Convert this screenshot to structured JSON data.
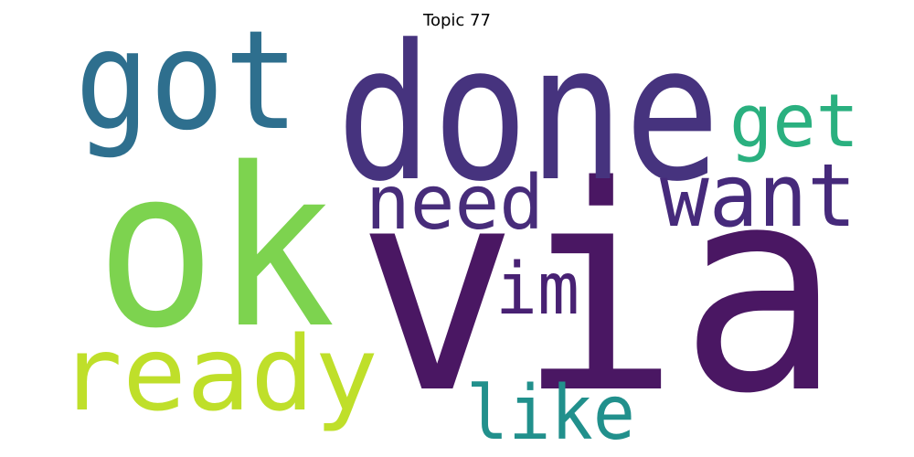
{
  "title": "Topic 77",
  "words": [
    {
      "text": "via",
      "color": "#4a1763"
    },
    {
      "text": "ok",
      "color": "#7dd34f"
    },
    {
      "text": "done",
      "color": "#46337e"
    },
    {
      "text": "got",
      "color": "#2e6f8e"
    },
    {
      "text": "ready",
      "color": "#bfdf2a"
    },
    {
      "text": "need",
      "color": "#472c7a"
    },
    {
      "text": "want",
      "color": "#462a7b"
    },
    {
      "text": "get",
      "color": "#2ab07f"
    },
    {
      "text": "im",
      "color": "#482173"
    },
    {
      "text": "like",
      "color": "#21908c"
    }
  ]
}
